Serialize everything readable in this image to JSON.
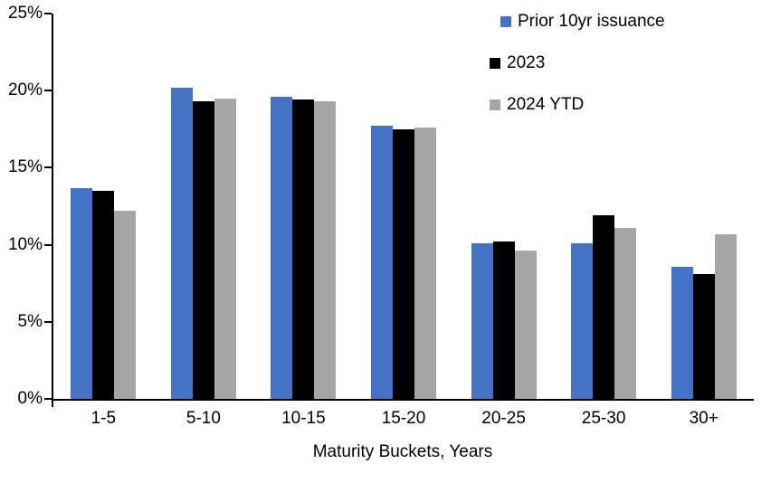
{
  "chart_data": {
    "type": "bar",
    "title": "",
    "xlabel": "Maturity Buckets, Years",
    "ylabel": "",
    "ylim": [
      0,
      25
    ],
    "ytick_step": 5,
    "ytick_labels": [
      "0%",
      "5%",
      "10%",
      "15%",
      "20%",
      "25%"
    ],
    "grid": false,
    "legend_position": "top-right",
    "categories": [
      "1-5",
      "5-10",
      "10-15",
      "15-20",
      "20-25",
      "25-30",
      "30+"
    ],
    "series": [
      {
        "name": "Prior 10yr issuance",
        "color": "#4472C4",
        "values": [
          13.7,
          20.2,
          19.6,
          17.7,
          10.1,
          10.1,
          8.6
        ]
      },
      {
        "name": "2023",
        "color": "#000000",
        "values": [
          13.5,
          19.3,
          19.4,
          17.5,
          10.2,
          11.9,
          8.1
        ]
      },
      {
        "name": "2024 YTD",
        "color": "#A6A6A6",
        "values": [
          12.2,
          19.5,
          19.3,
          17.6,
          9.6,
          11.1,
          10.7
        ]
      }
    ]
  }
}
